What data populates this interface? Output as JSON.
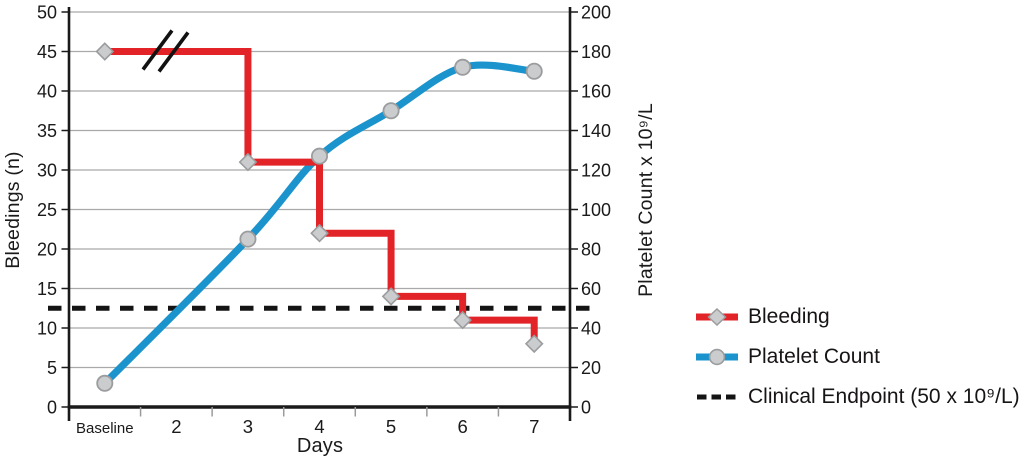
{
  "chart_data": {
    "type": "line",
    "x_categories": [
      "Baseline",
      "2",
      "3",
      "4",
      "5",
      "6",
      "7"
    ],
    "xlabel": "Days",
    "left_axis": {
      "label": "Bleedings (n)",
      "min": 0,
      "max": 50,
      "tick_step": 5
    },
    "right_axis": {
      "label": "Platelet Count  x 10⁹/L",
      "min": 0,
      "max": 200,
      "tick_step": 20
    },
    "grid": "horizontal",
    "legend_position": "right-bottom",
    "series": [
      {
        "name": "Bleeding",
        "axis": "left",
        "style": "step",
        "marker": "diamond",
        "color": "#e22428",
        "x": [
          "Baseline",
          "3",
          "4",
          "5",
          "6",
          "7"
        ],
        "values": [
          45,
          31,
          22,
          14,
          11,
          8
        ],
        "axis_break_between": [
          "Baseline",
          "3"
        ]
      },
      {
        "name": "Platelet Count",
        "axis": "right",
        "style": "smooth",
        "marker": "circle",
        "color": "#1b94cd",
        "x": [
          "Baseline",
          "3",
          "4",
          "5",
          "6",
          "7"
        ],
        "values": [
          12,
          85,
          127,
          150,
          172,
          170
        ]
      }
    ],
    "reference_line": {
      "name": "Clinical Endpoint (50 x 10⁹/L)",
      "axis": "right",
      "value": 50,
      "style": "dashed",
      "color": "#141414"
    }
  },
  "colors": {
    "marker_fill": "#cbcccd",
    "marker_stroke": "#9a9c9e",
    "gridline": "#a9a9a9",
    "minor_tick": "#9b9b9b",
    "axis": "#1a1a1a",
    "background": "#ffffff"
  }
}
